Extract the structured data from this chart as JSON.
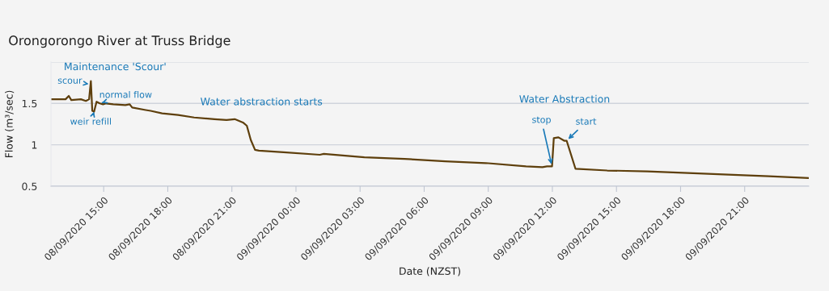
{
  "chart_data": {
    "type": "line",
    "title": "Orongorongo River at Truss Bridge",
    "xlabel": "Date (NZST)",
    "ylabel": "Flow (m³/sec)",
    "x": [
      "2020-09-08T12:32",
      "2020-09-08T13:13",
      "2020-09-08T13:22",
      "2020-09-08T13:29",
      "2020-09-08T13:56",
      "2020-09-08T14:10",
      "2020-09-08T14:19",
      "2020-09-08T14:24",
      "2020-09-08T14:28",
      "2020-09-08T14:33",
      "2020-09-08T14:40",
      "2020-09-08T14:49",
      "2020-09-08T14:58",
      "2020-09-08T15:07",
      "2020-09-08T15:27",
      "2020-09-08T16:01",
      "2020-09-08T16:13",
      "2020-09-08T16:20",
      "2020-09-08T16:58",
      "2020-09-08T17:12",
      "2020-09-08T17:44",
      "2020-09-08T18:29",
      "2020-09-08T19:14",
      "2020-09-08T20:11",
      "2020-09-08T20:45",
      "2020-09-08T21:08",
      "2020-09-08T21:31",
      "2020-09-08T21:42",
      "2020-09-08T21:53",
      "2020-09-08T22:05",
      "2020-09-08T22:16",
      "2020-09-08T23:25",
      "2020-09-09T01:07",
      "2020-09-09T01:18",
      "2020-09-09T03:12",
      "2020-09-09T05:05",
      "2020-09-09T06:59",
      "2020-09-09T08:53",
      "2020-09-09T10:46",
      "2020-09-09T11:32",
      "2020-09-09T11:45",
      "2020-09-09T11:59",
      "2020-09-09T12:04",
      "2020-09-09T12:17",
      "2020-09-09T12:33",
      "2020-09-09T12:40",
      "2020-09-09T13:05",
      "2020-09-09T14:34",
      "2020-09-09T16:27",
      "2020-09-09T18:21",
      "2020-09-09T20:14",
      "2020-09-09T22:08",
      "2020-09-09T23:58"
    ],
    "series": [
      {
        "color": "#5e3f0c",
        "values": [
          1.55,
          1.55,
          1.59,
          1.54,
          1.55,
          1.53,
          1.55,
          1.77,
          1.41,
          1.4,
          1.52,
          1.5,
          1.49,
          1.5,
          1.49,
          1.48,
          1.49,
          1.45,
          1.42,
          1.41,
          1.38,
          1.36,
          1.33,
          1.31,
          1.3,
          1.31,
          1.27,
          1.23,
          1.06,
          0.94,
          0.93,
          0.91,
          0.88,
          0.89,
          0.85,
          0.83,
          0.8,
          0.78,
          0.74,
          0.73,
          0.74,
          0.74,
          1.08,
          1.09,
          1.05,
          1.05,
          0.71,
          0.69,
          0.68,
          0.66,
          0.64,
          0.62,
          0.6
        ]
      }
    ],
    "xlim": [
      "2020-09-08T12:32",
      "2020-09-10T00:00"
    ],
    "xticks": [
      {
        "value": "2020-09-08T15:00",
        "label": "08/09/2020 15:00"
      },
      {
        "value": "2020-09-08T18:00",
        "label": "08/09/2020 18:00"
      },
      {
        "value": "2020-09-08T21:00",
        "label": "08/09/2020 21:00"
      },
      {
        "value": "2020-09-09T00:00",
        "label": "09/09/2020 00:00"
      },
      {
        "value": "2020-09-09T03:00",
        "label": "09/09/2020 03:00"
      },
      {
        "value": "2020-09-09T06:00",
        "label": "09/09/2020 06:00"
      },
      {
        "value": "2020-09-09T09:00",
        "label": "09/09/2020 09:00"
      },
      {
        "value": "2020-09-09T12:00",
        "label": "09/09/2020 12:00"
      },
      {
        "value": "2020-09-09T15:00",
        "label": "09/09/2020 15:00"
      },
      {
        "value": "2020-09-09T18:00",
        "label": "09/09/2020 18:00"
      },
      {
        "value": "2020-09-09T21:00",
        "label": "09/09/2020 21:00"
      }
    ],
    "ylim": [
      0.5,
      2.0
    ],
    "yticks": [
      {
        "value": 0.5,
        "label": "0.5"
      },
      1,
      1.5,
      {
        "value": 2,
        "label": null
      }
    ],
    "grid": "y",
    "legend": false,
    "marker": "none",
    "line_style": "solid",
    "annotations": [
      {
        "text": "Maintenance 'Scour'",
        "x": "2020-09-08T14:24",
        "y": 1.77
      },
      {
        "text": "scour",
        "x": "2020-09-08T14:24",
        "y": 1.73
      },
      {
        "text": "weir refill",
        "x": "2020-09-08T14:33",
        "y": 1.4
      },
      {
        "text": "normal flow",
        "x": "2020-09-08T14:49",
        "y": 1.5
      },
      {
        "text": "Water abstraction starts",
        "x": "2020-09-08T21:42",
        "y": 1.23
      },
      "Water Abstraction",
      {
        "text": "stop",
        "x": "2020-09-09T11:59",
        "y": 0.74
      },
      {
        "text": "start",
        "x": "2020-09-09T12:40",
        "y": 1.05
      }
    ]
  }
}
